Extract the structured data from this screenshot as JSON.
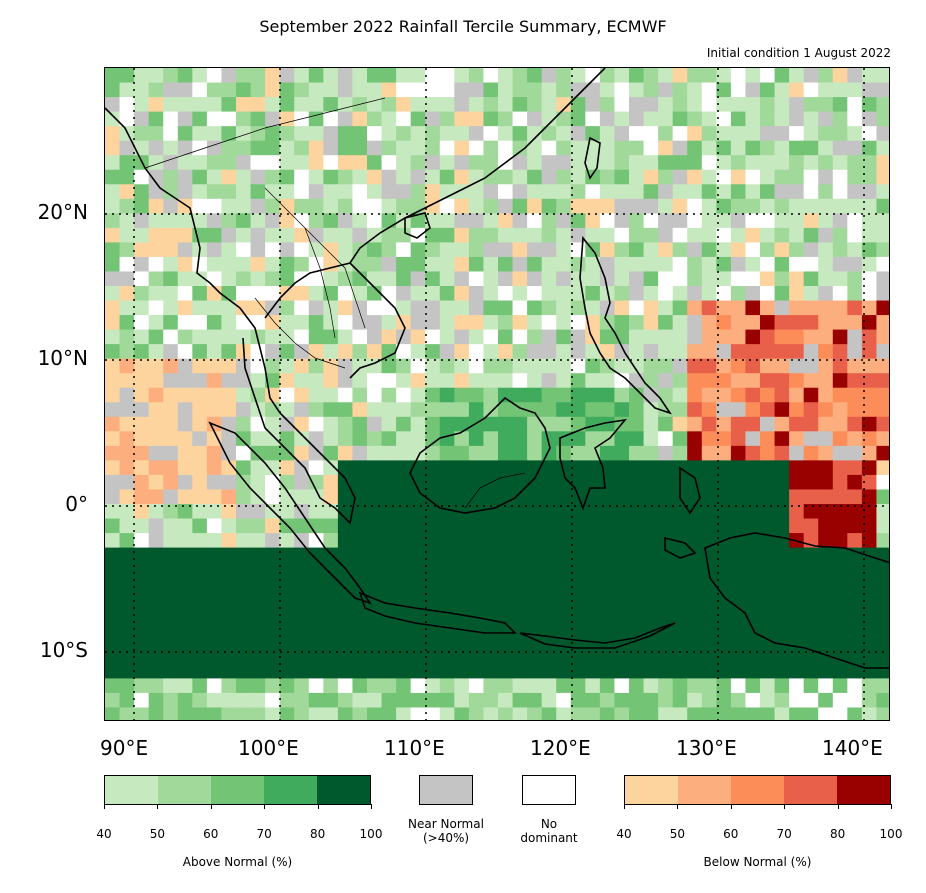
{
  "title": "September 2022 Rainfall Tercile Summary, ECMWF",
  "subtitle": "Initial condition 1 August 2022",
  "lat_labels": [
    "20°N",
    "10°N",
    "0°",
    "10°S"
  ],
  "lon_labels": [
    "90°E",
    "100°E",
    "110°E",
    "120°E",
    "130°E",
    "140°E"
  ],
  "legend": {
    "above": {
      "label": "Above Normal (%)",
      "ticks": [
        "40",
        "50",
        "60",
        "70",
        "80",
        "100"
      ],
      "colors": [
        "#c7e9c0",
        "#a1d99b",
        "#74c476",
        "#41ab5d",
        "#00582d"
      ]
    },
    "near": {
      "label_line1": "Near Normal",
      "label_line2": "(>40%)",
      "color": "#c4c4c4"
    },
    "none": {
      "label_line1": "No",
      "label_line2": "dominant",
      "color": "#ffffff"
    },
    "below": {
      "label": "Below Normal (%)",
      "ticks": [
        "40",
        "50",
        "60",
        "70",
        "80",
        "100"
      ],
      "colors": [
        "#fdd49e",
        "#fdae7e",
        "#fc8d59",
        "#e9604a",
        "#990000"
      ]
    }
  }
}
